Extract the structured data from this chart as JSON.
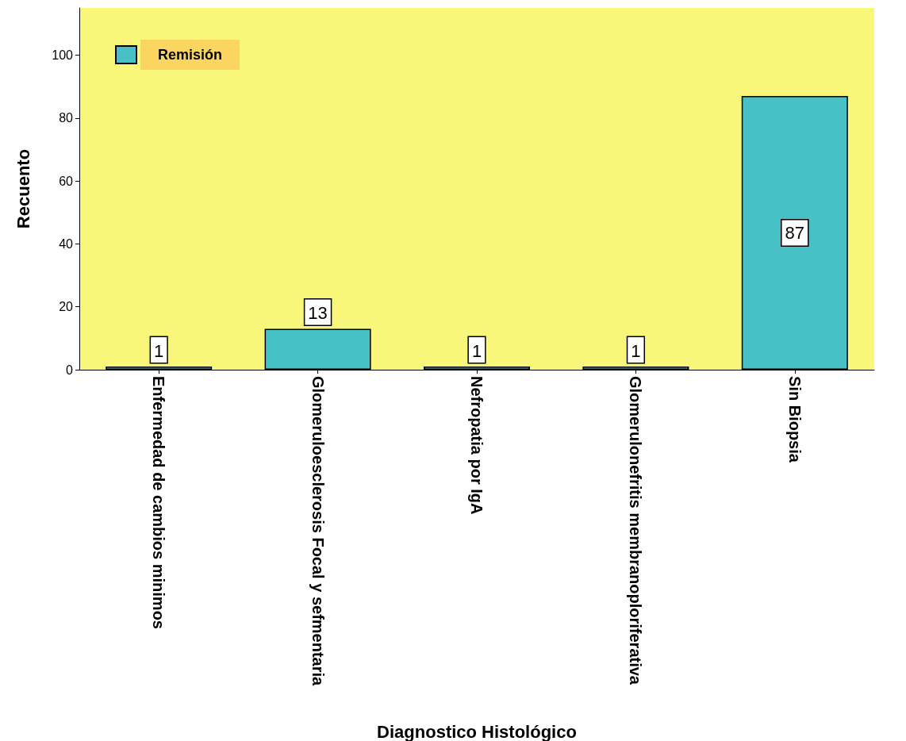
{
  "chart_data": {
    "type": "bar",
    "xlabel": "Diagnostico Histológico",
    "ylabel": "Recuento",
    "categories": [
      "Enfermedad de cambios minimos",
      "Glomeruloesclerosis Focal y sefmentaria",
      "Nefropatia por IgA",
      "Glomerulonefritis membranoploriferativa",
      "Sin Biopsia"
    ],
    "series": [
      {
        "name": "Remisión",
        "color": "#48c1c6",
        "values": [
          1,
          13,
          1,
          1,
          87
        ]
      }
    ],
    "ylim": [
      0,
      115
    ],
    "yticks": [
      0,
      20,
      40,
      60,
      80,
      100
    ],
    "grid": false,
    "legend": "top left",
    "data_labels": true
  }
}
